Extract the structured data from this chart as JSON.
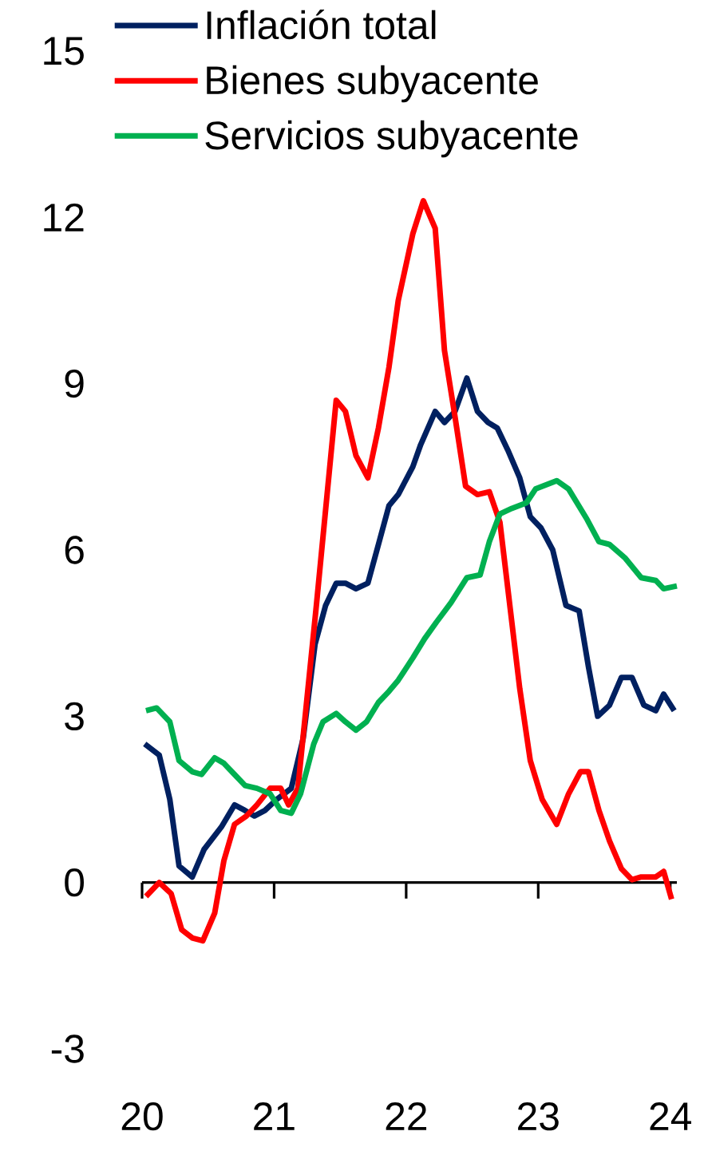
{
  "chart_data": {
    "type": "line",
    "xlim": [
      20,
      24.05
    ],
    "ylim": [
      -3,
      15
    ],
    "xticks": [
      20,
      21,
      22,
      23,
      24
    ],
    "yticks": [
      -3,
      0,
      3,
      6,
      9,
      12,
      15
    ],
    "legend": "top",
    "series": [
      {
        "name": "Inflación total",
        "color": "#002060",
        "x": [
          20.02,
          20.13,
          20.21,
          20.28,
          20.38,
          20.47,
          20.6,
          20.7,
          20.78,
          20.85,
          20.93,
          21.02,
          21.13,
          21.22,
          21.31,
          21.39,
          21.47,
          21.54,
          21.62,
          21.71,
          21.79,
          21.87,
          21.94,
          22.05,
          22.11,
          22.22,
          22.29,
          22.37,
          22.46,
          22.54,
          22.62,
          22.69,
          22.77,
          22.86,
          22.94,
          23.02,
          23.11,
          23.21,
          23.31,
          23.38,
          23.45,
          23.54,
          23.63,
          23.71,
          23.8,
          23.89,
          23.95,
          24.03
        ],
        "values": [
          2.5,
          2.3,
          1.5,
          0.3,
          0.1,
          0.6,
          1.0,
          1.4,
          1.3,
          1.2,
          1.3,
          1.5,
          1.7,
          2.6,
          4.3,
          5.0,
          5.4,
          5.4,
          5.3,
          5.4,
          6.1,
          6.8,
          7.0,
          7.5,
          7.9,
          8.5,
          8.3,
          8.5,
          9.1,
          8.5,
          8.3,
          8.2,
          7.8,
          7.3,
          6.6,
          6.4,
          6.0,
          5.0,
          4.9,
          3.9,
          3.0,
          3.2,
          3.7,
          3.7,
          3.2,
          3.1,
          3.4,
          3.1
        ]
      },
      {
        "name": "Bienes subyacente",
        "color": "#ff0000",
        "x": [
          20.03,
          20.13,
          20.22,
          20.3,
          20.38,
          20.46,
          20.55,
          20.62,
          20.7,
          20.79,
          20.87,
          20.97,
          21.05,
          21.11,
          21.18,
          21.32,
          21.47,
          21.54,
          21.62,
          21.71,
          21.79,
          21.87,
          21.94,
          22.05,
          22.13,
          22.22,
          22.29,
          22.37,
          22.45,
          22.54,
          22.63,
          22.71,
          22.79,
          22.86,
          22.94,
          23.03,
          23.14,
          23.23,
          23.32,
          23.38,
          23.46,
          23.54,
          23.63,
          23.71,
          23.78,
          23.89,
          23.95,
          24.01
        ],
        "values": [
          -0.25,
          0.0,
          -0.2,
          -0.85,
          -1.0,
          -1.05,
          -0.55,
          0.4,
          1.05,
          1.2,
          1.4,
          1.7,
          1.7,
          1.4,
          1.7,
          5.0,
          8.7,
          8.5,
          7.7,
          7.3,
          8.2,
          9.3,
          10.5,
          11.7,
          12.3,
          11.8,
          9.6,
          8.4,
          7.15,
          7.0,
          7.05,
          6.5,
          4.9,
          3.5,
          2.2,
          1.5,
          1.05,
          1.6,
          2.0,
          2.0,
          1.3,
          0.75,
          0.25,
          0.05,
          0.1,
          0.1,
          0.2,
          -0.3
        ]
      },
      {
        "name": "Servicios subyacente",
        "color": "#00b050",
        "x": [
          20.03,
          20.11,
          20.21,
          20.28,
          20.38,
          20.45,
          20.55,
          20.62,
          20.7,
          20.78,
          20.87,
          20.97,
          21.05,
          21.13,
          21.2,
          21.3,
          21.37,
          21.47,
          21.54,
          21.62,
          21.7,
          21.79,
          21.87,
          21.94,
          22.05,
          22.14,
          22.23,
          22.34,
          22.46,
          22.56,
          22.63,
          22.71,
          22.8,
          22.91,
          22.98,
          23.14,
          23.23,
          23.37,
          23.46,
          23.54,
          23.66,
          23.78,
          23.89,
          23.95,
          24.05
        ],
        "values": [
          3.1,
          3.15,
          2.9,
          2.2,
          2.0,
          1.95,
          2.25,
          2.15,
          1.95,
          1.75,
          1.7,
          1.6,
          1.3,
          1.25,
          1.6,
          2.5,
          2.9,
          3.05,
          2.9,
          2.75,
          2.9,
          3.25,
          3.45,
          3.65,
          4.05,
          4.4,
          4.7,
          5.05,
          5.5,
          5.55,
          6.15,
          6.65,
          6.75,
          6.85,
          7.1,
          7.25,
          7.1,
          6.55,
          6.15,
          6.1,
          5.85,
          5.5,
          5.45,
          5.3,
          5.35
        ]
      }
    ]
  }
}
